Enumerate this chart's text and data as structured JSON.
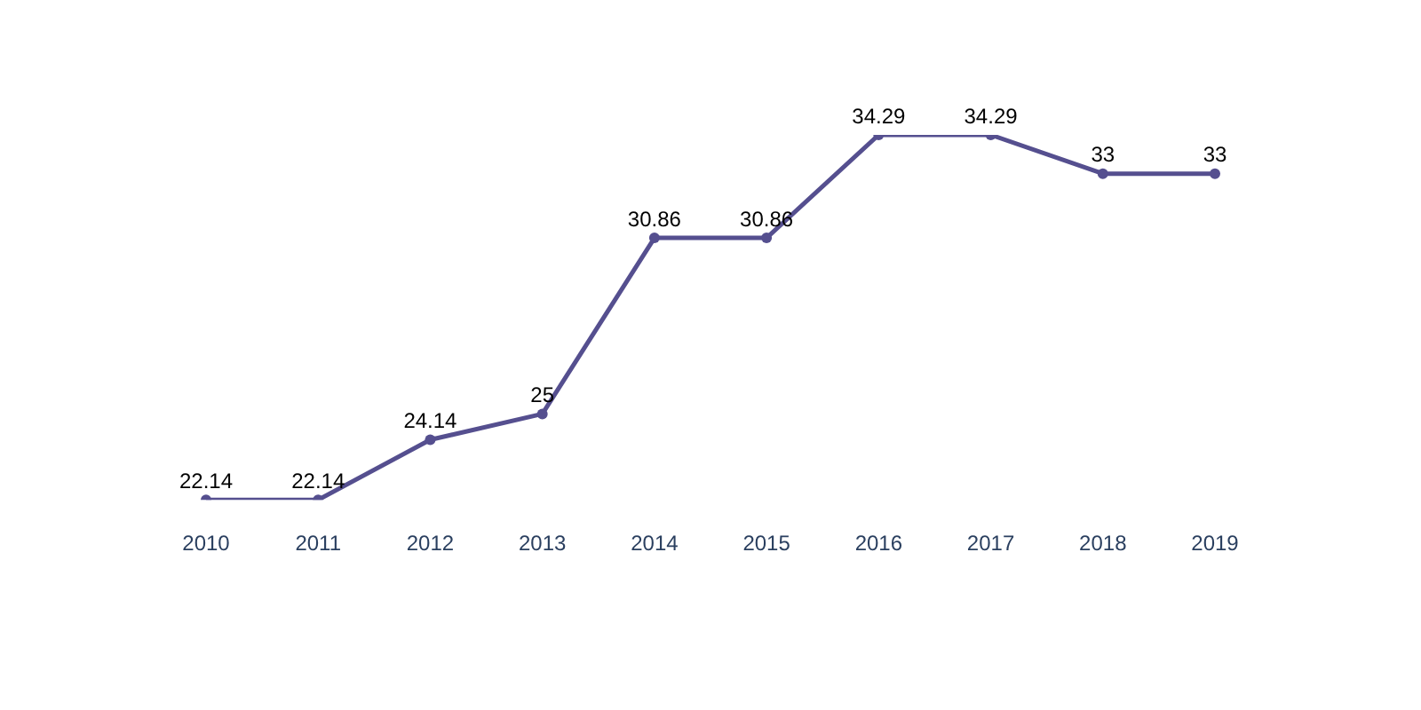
{
  "chart_data": {
    "type": "line",
    "categories": [
      "2010",
      "2011",
      "2012",
      "2013",
      "2014",
      "2015",
      "2016",
      "2017",
      "2018",
      "2019"
    ],
    "series": [
      {
        "color": "#554f8f",
        "values": [
          22.14,
          22.14,
          24.14,
          25,
          30.86,
          30.86,
          34.29,
          34.29,
          33,
          33
        ]
      }
    ],
    "data_labels": true,
    "grid": false,
    "legend": false,
    "marker": "circle",
    "line_style": "solid",
    "tick_labels": "x"
  }
}
